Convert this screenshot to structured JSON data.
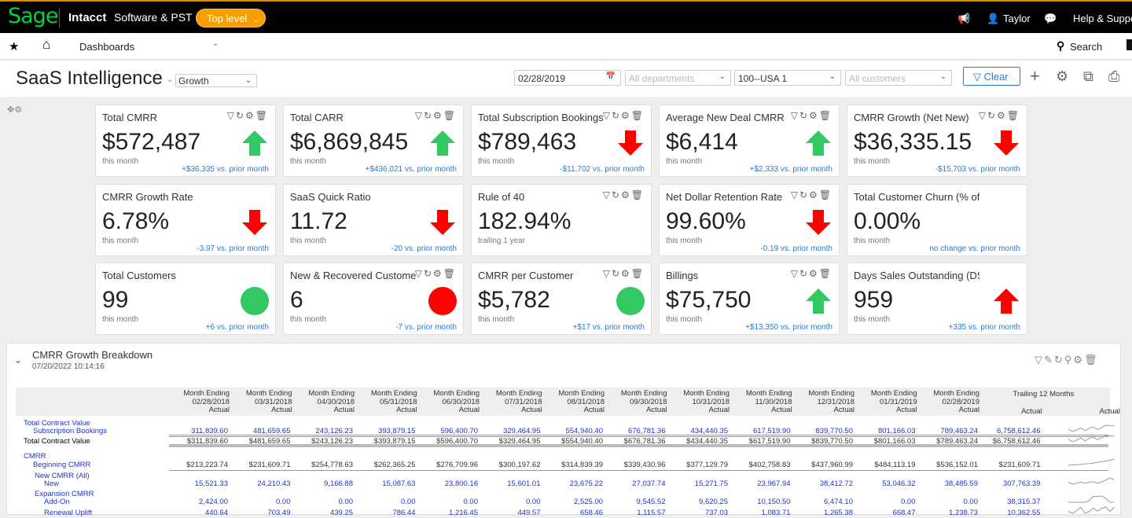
{
  "topbar": {
    "logo": "Sage",
    "brand": "Intacct",
    "company": "Software & PST",
    "level": "Top level",
    "user": "Taylor",
    "help": "Help & Support"
  },
  "nav": {
    "dashboards": "Dashboards",
    "search": "Search"
  },
  "header": {
    "title": "SaaS Intelligence",
    "view": "Growth",
    "date": "02/28/2019",
    "departments_placeholder": "All departments",
    "location": "100--USA 1",
    "customers_placeholder": "All customers",
    "clear": "Clear"
  },
  "colors": {
    "up": "#22c55e",
    "down": "#ff0000",
    "link": "#2b7bd0",
    "accent": "#f5a000"
  },
  "cards": [
    {
      "title": "Total CMRR",
      "value": "$572,487",
      "period": "this month",
      "change": "+$36,335 vs. prior month",
      "indicator": "arrow-up",
      "color": "#32c864",
      "icons": "filter refresh gear trash"
    },
    {
      "title": "Total CARR",
      "value": "$6,869,845",
      "period": "this month",
      "change": "+$436,021 vs. prior month",
      "indicator": "arrow-up",
      "color": "#32c864",
      "icons": "filter refresh gear trash"
    },
    {
      "title": "Total Subscription Bookings",
      "value": "$789,463",
      "period": "this month",
      "change": "-$11,702 vs. prior month",
      "indicator": "arrow-down",
      "color": "#ff0000",
      "icons": "filter refresh gear trash"
    },
    {
      "title": "Average New Deal CMRR",
      "value": "$6,414",
      "period": "this month",
      "change": "+$2,333 vs. prior month",
      "indicator": "arrow-up",
      "color": "#32c864",
      "icons": "filter refresh gear trash"
    },
    {
      "title": "CMRR Growth (Net New)",
      "value": "$36,335.15",
      "period": "this month",
      "change": "-$15,703 vs. prior month",
      "indicator": "arrow-down",
      "color": "#ff0000",
      "icons": "filter refresh gear trash"
    },
    {
      "title": "CMRR Growth Rate",
      "value": "6.78%",
      "period": "this month",
      "change": "-3.97 vs. prior month",
      "indicator": "arrow-down",
      "color": "#ff0000",
      "icons": ""
    },
    {
      "title": "SaaS Quick Ratio",
      "value": "11.72",
      "period": "this month",
      "change": "-20 vs. prior month",
      "indicator": "arrow-down",
      "color": "#ff0000",
      "icons": ""
    },
    {
      "title": "Rule of 40",
      "value": "182.94%",
      "period": "trailing 1 year",
      "change": "",
      "indicator": "none",
      "color": "",
      "icons": "filter refresh gear trash"
    },
    {
      "title": "Net Dollar Retention Rate",
      "value": "99.60%",
      "period": "this month",
      "change": "-0.19 vs. prior month",
      "indicator": "arrow-down",
      "color": "#ff0000",
      "icons": "filter refresh gear trash"
    },
    {
      "title": "Total Customer Churn (% of Total)",
      "value": "0.00%",
      "period": "this month",
      "change": "no change vs. prior month",
      "indicator": "none",
      "color": "",
      "icons": ""
    },
    {
      "title": "Total Customers",
      "value": "99",
      "period": "this month",
      "change": "+6 vs. prior month",
      "indicator": "circle",
      "color": "#32c864",
      "icons": ""
    },
    {
      "title": "New & Recovered Customers",
      "value": "6",
      "period": "this month",
      "change": "-7 vs. prior month",
      "indicator": "circle",
      "color": "#ff0000",
      "icons": "filter refresh gear trash"
    },
    {
      "title": "CMRR per Customer",
      "value": "$5,782",
      "period": "this month",
      "change": "+$17 vs. prior month",
      "indicator": "circle",
      "color": "#32c864",
      "icons": "filter refresh gear trash"
    },
    {
      "title": "Billings",
      "value": "$75,750",
      "period": "this month",
      "change": "+$13,350 vs. prior month",
      "indicator": "arrow-up",
      "color": "#32c864",
      "icons": "filter refresh gear trash"
    },
    {
      "title": "Days Sales Outstanding (DSO)",
      "value": "959",
      "period": "this month",
      "change": "+335 vs. prior month",
      "indicator": "arrow-up",
      "color": "#ff0000",
      "icons": ""
    }
  ],
  "panel": {
    "title": "CMRR Growth Breakdown",
    "timestamp": "07/20/2022 10:14:16",
    "columns": [
      "02/28/2018",
      "03/31/2018",
      "04/30/2018",
      "05/31/2018",
      "06/30/2018",
      "07/31/2018",
      "08/31/2018",
      "09/30/2018",
      "10/31/2018",
      "11/30/2018",
      "12/31/2018",
      "01/31/2019",
      "02/28/2019"
    ],
    "column_prefix": "Month Ending",
    "column_sub": "Actual",
    "trailing": "Trailing 12 Months",
    "trailing_sub": "Actual",
    "spark_sub": "Actual",
    "rows": [
      {
        "group": "Total Contract Value",
        "label": "Subscription Bookings",
        "style": "blue",
        "values": [
          "311,839.60",
          "481,659.65",
          "243,126.23",
          "393,879.15",
          "596,400.70",
          "329,464.95",
          "554,940.40",
          "676,781.36",
          "434,440.35",
          "617,519.90",
          "839,770.50",
          "801,166.03",
          "789,463.24"
        ],
        "total": "6,758,612.46"
      },
      {
        "group": "",
        "label": "Total Contract Value",
        "style": "total",
        "values": [
          "$311,839.60",
          "$481,659.65",
          "$243,126.23",
          "$393,879.15",
          "$596,400.70",
          "$329,464.95",
          "$554,940.40",
          "$676,781.36",
          "$434,440.35",
          "$617,519.90",
          "$839,770.50",
          "$801,166.03",
          "$789,463.24"
        ],
        "total": "$6,758,612.46"
      },
      {
        "group": "CMRR",
        "label": "Beginning CMRR",
        "style": "dark",
        "values": [
          "$213,223.74",
          "$231,609.71",
          "$254,778.63",
          "$262,365.25",
          "$276,709.96",
          "$300,197.62",
          "$314,839.39",
          "$339,430.96",
          "$377,129.79",
          "$402,758.83",
          "$437,960.99",
          "$484,113.19",
          "$536,152.01"
        ],
        "total": "$231,609.71"
      },
      {
        "group": "New CMRR (All)",
        "label": "New",
        "style": "blue",
        "values": [
          "15,521.33",
          "24,210.43",
          "9,166.88",
          "15,087.63",
          "23,800.16",
          "15,601.01",
          "23,675.22",
          "27,037.74",
          "15,271.75",
          "23,967.94",
          "38,412.72",
          "53,046.32",
          "38,485.59"
        ],
        "total": "307,763.39"
      },
      {
        "group": "Expansion CMRR",
        "label": "Add-On",
        "style": "blue",
        "values": [
          "2,424.00",
          "0.00",
          "0.00",
          "0.00",
          "0.00",
          "0.00",
          "2,525.00",
          "9,545.52",
          "9,620.25",
          "10,150.50",
          "6,474.10",
          "0.00",
          "0.00"
        ],
        "total": "38,315.37"
      },
      {
        "group": "",
        "label": "Renewal Uplift",
        "style": "blue",
        "values": [
          "440.64",
          "703.49",
          "439.25",
          "786.44",
          "1,216.45",
          "449.57",
          "658.46",
          "1,115.57",
          "737.03",
          "1,083.71",
          "1,265.38",
          "668.47",
          "1,238.73"
        ],
        "total": "10,362.55"
      }
    ]
  }
}
